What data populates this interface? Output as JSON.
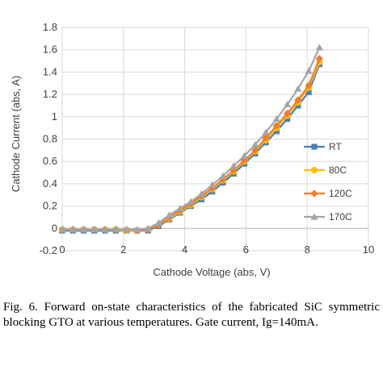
{
  "caption": "Fig. 6. Forward on-state characteristics of the fabricated SiC symmetric blocking GTO at various temperatures. Gate current, Ig=140mA.",
  "chart_data": {
    "type": "line",
    "title": "",
    "xlabel": "Cathode Voltage (abs, V)",
    "ylabel": "Cathode Current (abs, A)",
    "xlim": [
      0,
      10
    ],
    "ylim": [
      -0.2,
      1.8
    ],
    "xticks": [
      0,
      2,
      4,
      6,
      8,
      10
    ],
    "yticks": [
      -0.2,
      0,
      0.2,
      0.4,
      0.6,
      0.8,
      1,
      1.2,
      1.4,
      1.6,
      1.8
    ],
    "grid": true,
    "legend_position": "right",
    "series": [
      {
        "name": "RT",
        "color": "#4a7ebb",
        "marker": "square",
        "x": [
          0,
          0.35,
          0.7,
          1.05,
          1.4,
          1.75,
          2.1,
          2.45,
          2.8,
          3.15,
          3.5,
          3.85,
          4.2,
          4.55,
          4.9,
          5.25,
          5.6,
          5.95,
          6.3,
          6.65,
          7.0,
          7.35,
          7.7,
          8.05,
          8.4
        ],
        "y": [
          -0.02,
          -0.02,
          -0.02,
          -0.02,
          -0.02,
          -0.02,
          -0.02,
          -0.02,
          -0.02,
          0.02,
          0.08,
          0.14,
          0.2,
          0.26,
          0.33,
          0.41,
          0.49,
          0.58,
          0.67,
          0.77,
          0.87,
          0.98,
          1.1,
          1.22,
          1.47
        ]
      },
      {
        "name": "80C",
        "color": "#ffc000",
        "marker": "circle",
        "x": [
          0,
          0.35,
          0.7,
          1.05,
          1.4,
          1.75,
          2.1,
          2.45,
          2.8,
          3.15,
          3.5,
          3.85,
          4.2,
          4.55,
          4.9,
          5.25,
          5.6,
          5.95,
          6.3,
          6.65,
          7.0,
          7.35,
          7.7,
          8.05,
          8.4
        ],
        "y": [
          -0.01,
          -0.01,
          -0.01,
          -0.01,
          -0.01,
          -0.01,
          -0.02,
          -0.02,
          -0.01,
          0.03,
          0.09,
          0.15,
          0.21,
          0.28,
          0.35,
          0.43,
          0.51,
          0.6,
          0.69,
          0.79,
          0.9,
          1.01,
          1.13,
          1.26,
          1.49
        ]
      },
      {
        "name": "120C",
        "color": "#ed7d31",
        "marker": "diamond",
        "x": [
          0,
          0.35,
          0.7,
          1.05,
          1.4,
          1.75,
          2.1,
          2.45,
          2.8,
          3.15,
          3.5,
          3.85,
          4.2,
          4.55,
          4.9,
          5.25,
          5.6,
          5.95,
          6.3,
          6.65,
          7.0,
          7.35,
          7.7,
          8.05,
          8.4
        ],
        "y": [
          -0.01,
          -0.01,
          -0.01,
          -0.01,
          -0.01,
          -0.01,
          -0.01,
          -0.02,
          -0.01,
          0.03,
          0.1,
          0.16,
          0.22,
          0.29,
          0.36,
          0.44,
          0.52,
          0.61,
          0.7,
          0.81,
          0.92,
          1.03,
          1.15,
          1.28,
          1.52
        ]
      },
      {
        "name": "170C",
        "color": "#a5a5a5",
        "marker": "triangle",
        "x": [
          0,
          0.35,
          0.7,
          1.05,
          1.4,
          1.75,
          2.1,
          2.45,
          2.8,
          3.15,
          3.5,
          3.85,
          4.2,
          4.55,
          4.9,
          5.25,
          5.6,
          5.95,
          6.3,
          6.65,
          7.0,
          7.35,
          7.7,
          8.05,
          8.4
        ],
        "y": [
          -0.01,
          -0.01,
          -0.01,
          -0.01,
          -0.01,
          -0.01,
          -0.01,
          -0.01,
          0.0,
          0.05,
          0.12,
          0.18,
          0.24,
          0.31,
          0.39,
          0.47,
          0.56,
          0.65,
          0.75,
          0.86,
          0.98,
          1.11,
          1.25,
          1.41,
          1.62
        ]
      }
    ]
  }
}
